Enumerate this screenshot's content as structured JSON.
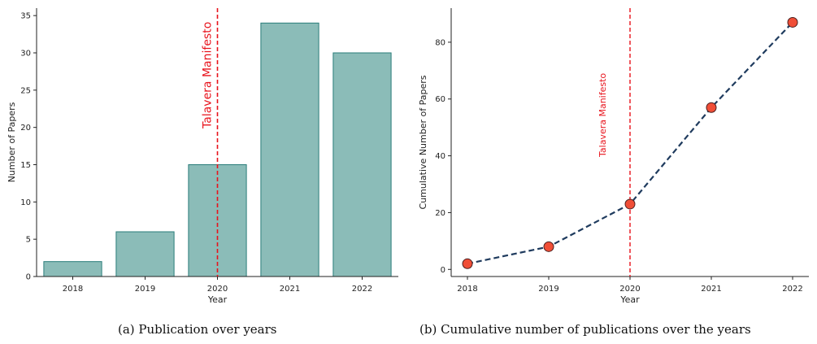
{
  "chart_data": [
    {
      "type": "bar",
      "categories": [
        "2018",
        "2019",
        "2020",
        "2021",
        "2022"
      ],
      "values": [
        2,
        6,
        15,
        34,
        30
      ],
      "xlabel": "Year",
      "ylabel": "Number of Papers",
      "ylim": [
        0,
        36
      ],
      "yticks": [
        0,
        5,
        10,
        15,
        20,
        25,
        30,
        35
      ],
      "colors": {
        "bar_fill": "#8bbcb8",
        "bar_edge": "#2a7d7a",
        "annotation": "#e8121b"
      },
      "annotation": {
        "text": "Talavera Manifesto",
        "x": "2020",
        "style": "dashed vertical line"
      },
      "grid": false,
      "caption": "(a) Publication over years"
    },
    {
      "type": "line",
      "x": [
        "2018",
        "2019",
        "2020",
        "2021",
        "2022"
      ],
      "values": [
        2,
        8,
        23,
        57,
        87
      ],
      "xlabel": "Year",
      "ylabel": "Cumulative Number of Papers",
      "ylim": [
        -2.5,
        92
      ],
      "yticks": [
        0,
        20,
        40,
        60,
        80
      ],
      "colors": {
        "line": "#1f3b5e",
        "marker_fill": "#f04e37",
        "marker_edge": "#4a2020",
        "annotation": "#e8121b"
      },
      "line_style": "dashed",
      "marker": "circle",
      "annotation": {
        "text": "Talavera Manifesto",
        "x": "2020",
        "style": "dashed vertical line"
      },
      "grid": false,
      "caption": "(b) Cumulative number of publications over the years"
    }
  ]
}
